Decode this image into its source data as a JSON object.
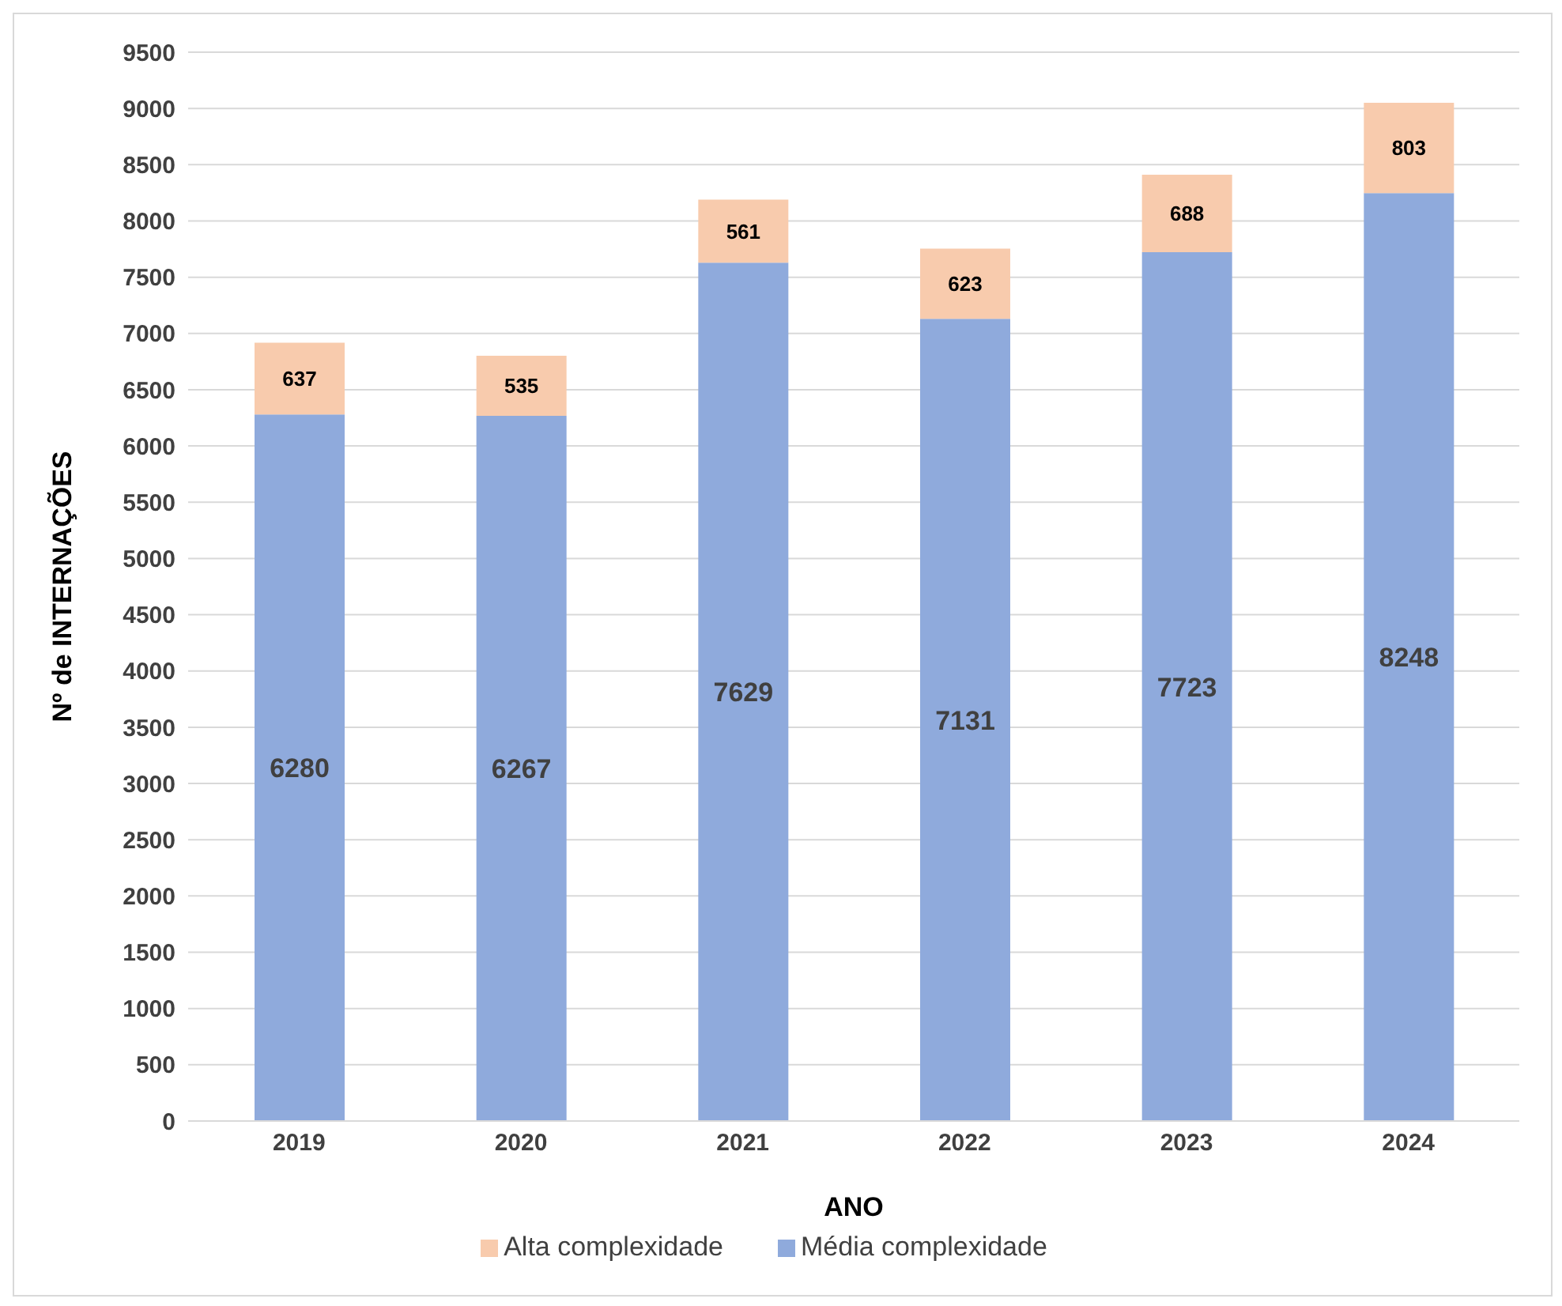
{
  "chart_data": {
    "type": "bar",
    "stacked": true,
    "xlabel": "ANO",
    "ylabel": "Nº de INTERNAÇÕES",
    "categories": [
      "2019",
      "2020",
      "2021",
      "2022",
      "2023",
      "2024"
    ],
    "series": [
      {
        "name": "Média complexidade",
        "color": "#8faadc",
        "values": [
          6280,
          6267,
          7629,
          7131,
          7723,
          8248
        ]
      },
      {
        "name": "Alta complexidade",
        "color": "#f8cbad",
        "values": [
          637,
          535,
          561,
          623,
          688,
          803
        ]
      }
    ],
    "ylim": [
      0,
      9500
    ],
    "yticks": [
      0,
      500,
      1000,
      1500,
      2000,
      2500,
      3000,
      3500,
      4000,
      4500,
      5000,
      5500,
      6000,
      6500,
      7000,
      7500,
      8000,
      8500,
      9000,
      9500
    ],
    "grid": "y",
    "legend": "bottom",
    "data_labels": true
  }
}
